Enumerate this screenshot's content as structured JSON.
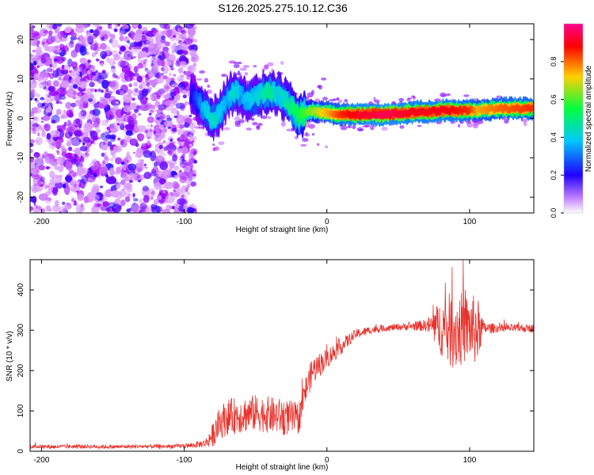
{
  "title": "S126.2025.275.10.12.C36",
  "colors": {
    "axis": "#000000",
    "snr_line": "#e8322c",
    "colormap": [
      "#ffffff",
      "#a000ff",
      "#2000ff",
      "#00c8ff",
      "#00ff40",
      "#ffd000",
      "#ff0000",
      "#ff0090"
    ]
  },
  "chart_data": [
    {
      "type": "heatmap",
      "title": "S126.2025.275.10.12.C36",
      "xlabel": "Height of straight line (km)",
      "ylabel": "Frequency (Hz)",
      "xlim": [
        -208,
        145
      ],
      "ylim": [
        -24,
        24
      ],
      "xticks": [
        -200,
        -100,
        0,
        100
      ],
      "yticks": [
        -20,
        -10,
        0,
        10,
        20
      ],
      "colorbar": {
        "label": "Normalized spectral amplitude",
        "range": [
          0,
          1
        ],
        "ticks": [
          0.0,
          0.2,
          0.4,
          0.6,
          0.8
        ]
      },
      "noise_region_km": [
        -208,
        -92
      ],
      "ridge": {
        "height_km": [
          -95,
          -90,
          -85,
          -80,
          -75,
          -70,
          -65,
          -60,
          -55,
          -50,
          -45,
          -40,
          -35,
          -30,
          -25,
          -20,
          -15,
          -10,
          -5,
          0,
          10,
          20,
          40,
          60,
          80,
          100,
          105,
          120,
          145
        ],
        "frequency_hz": [
          6,
          4,
          2,
          0,
          1,
          5,
          7,
          6,
          5,
          5,
          6,
          7,
          6,
          5,
          3,
          0.5,
          1.5,
          2,
          1.5,
          1.5,
          1,
          1,
          1,
          1.5,
          2,
          2,
          2,
          2.5,
          2.5
        ],
        "amplitude": [
          0.2,
          0.3,
          0.4,
          0.45,
          0.4,
          0.35,
          0.45,
          0.35,
          0.4,
          0.4,
          0.45,
          0.5,
          0.4,
          0.45,
          0.5,
          0.55,
          0.6,
          0.65,
          0.7,
          0.75,
          0.85,
          0.9,
          0.95,
          0.9,
          0.9,
          0.85,
          0.75,
          0.8,
          0.85
        ]
      }
    },
    {
      "type": "line",
      "xlabel": "Height of straight line (km)",
      "ylabel": "SNR (10 * v/v)",
      "xlim": [
        -208,
        145
      ],
      "ylim": [
        0,
        475
      ],
      "xticks": [
        -200,
        -100,
        0,
        100
      ],
      "yticks": [
        0,
        100,
        200,
        300,
        400
      ],
      "series": [
        {
          "name": "SNR",
          "x": [
            -208,
            -190,
            -170,
            -150,
            -130,
            -110,
            -95,
            -85,
            -80,
            -75,
            -70,
            -60,
            -50,
            -40,
            -30,
            -20,
            -15,
            -10,
            0,
            10,
            20,
            30,
            40,
            50,
            60,
            70,
            80,
            85,
            90,
            100,
            105,
            110,
            120,
            130,
            145
          ],
          "center": [
            12,
            11,
            12,
            11,
            12,
            12,
            14,
            20,
            40,
            70,
            85,
            90,
            95,
            90,
            85,
            80,
            150,
            200,
            230,
            260,
            290,
            300,
            305,
            308,
            310,
            312,
            308,
            300,
            300,
            305,
            300,
            305,
            305,
            305,
            305
          ],
          "spread": [
            5,
            5,
            5,
            5,
            5,
            5,
            6,
            10,
            30,
            40,
            45,
            45,
            45,
            45,
            45,
            40,
            35,
            35,
            25,
            20,
            12,
            10,
            8,
            8,
            10,
            15,
            70,
            90,
            100,
            80,
            90,
            15,
            10,
            10,
            10
          ]
        }
      ]
    }
  ]
}
